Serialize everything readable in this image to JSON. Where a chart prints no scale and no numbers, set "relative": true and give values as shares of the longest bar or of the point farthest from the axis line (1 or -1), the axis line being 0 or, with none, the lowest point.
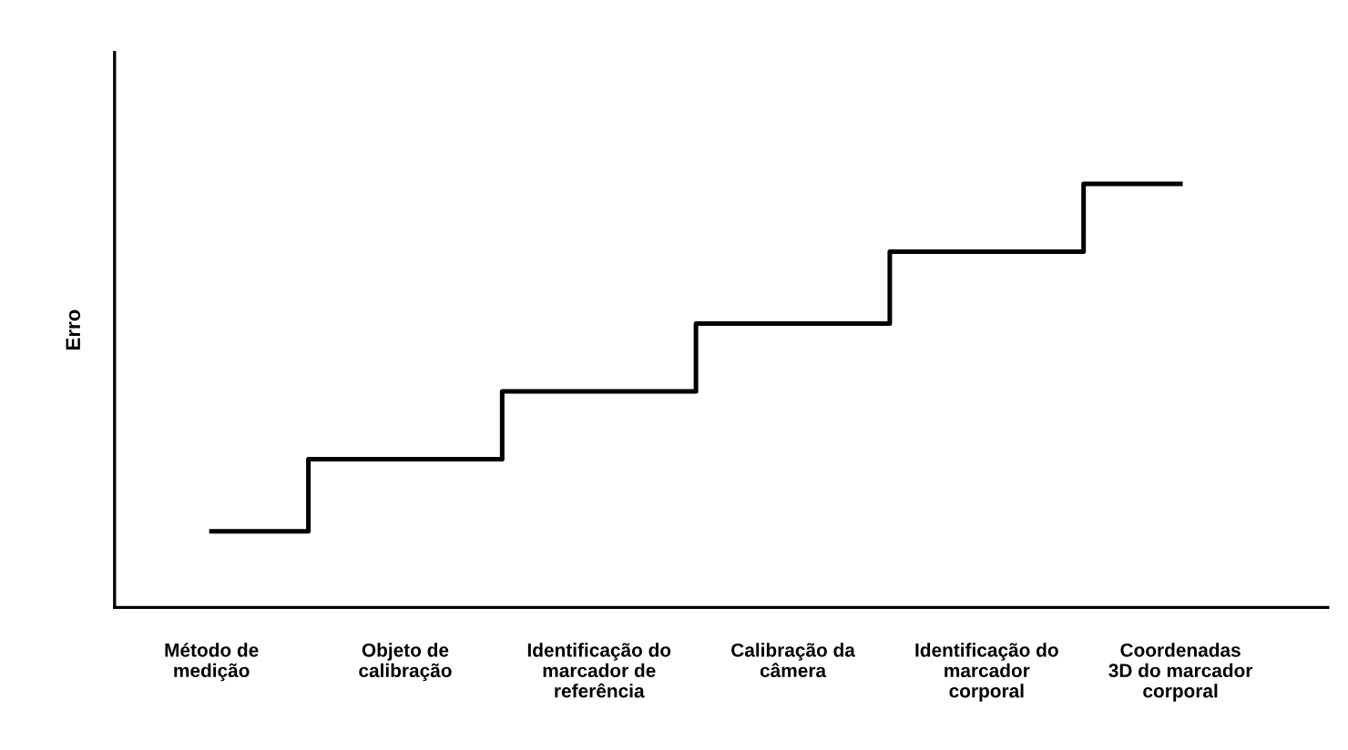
{
  "chart_data": {
    "type": "step",
    "ylabel": "Erro",
    "relative": true,
    "categories": [
      "Método de\nmedição",
      "Objeto de\ncalibração",
      "Identificação do\nmarcador de\nreferência",
      "Calibração da\ncâmera",
      "Identificação do\nmarcador\ncorporal",
      "Coordenadas\n3D do marcador\ncorporal"
    ],
    "values": [
      0.18,
      0.35,
      0.51,
      0.67,
      0.84,
      1.0
    ],
    "color": "#000000",
    "grid": false,
    "legend": false,
    "marker": "none",
    "line_style": "solid",
    "tick_labels": "x"
  }
}
